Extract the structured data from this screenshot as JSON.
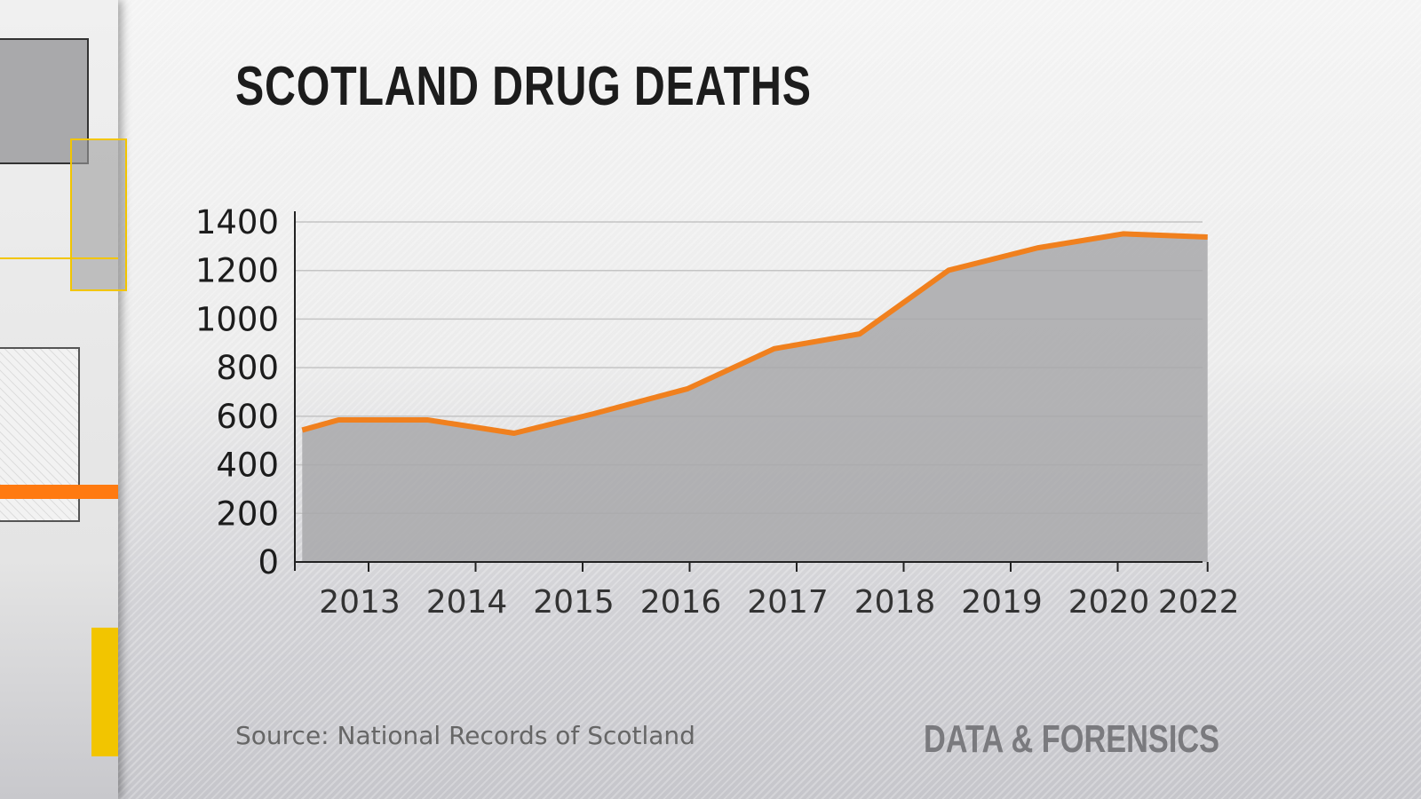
{
  "title": "SCOTLAND DRUG DEATHS",
  "source": "Source: National Records of Scotland",
  "brand": "DATA & FORENSICS",
  "colors": {
    "line": "#f0801e",
    "area": "#a8a8aa",
    "yellow": "#f2c500",
    "orange": "#ff7a10"
  },
  "chart_data": {
    "type": "area",
    "title": "SCOTLAND DRUG DEATHS",
    "xlabel": "",
    "ylabel": "",
    "ylim": [
      0,
      1400
    ],
    "yticks": [
      0,
      200,
      400,
      600,
      800,
      1000,
      1200,
      1400
    ],
    "xticks": [
      {
        "x": 2013,
        "label": "2013"
      },
      {
        "x": 2014,
        "label": "2014"
      },
      {
        "x": 2015,
        "label": "2015"
      },
      {
        "x": 2016,
        "label": "2016"
      },
      {
        "x": 2017,
        "label": "2017"
      },
      {
        "x": 2018,
        "label": "2018"
      },
      {
        "x": 2019,
        "label": "2019"
      },
      {
        "x": 2020,
        "label": "2020"
      },
      {
        "x": 2020.84,
        "label": "2022"
      }
    ],
    "xlim": [
      2012.38,
      2021.0
    ],
    "grid": true,
    "series": [
      {
        "points": [
          {
            "x": 2012.38,
            "y": 543
          },
          {
            "x": 2012.72,
            "y": 585
          },
          {
            "x": 2013.55,
            "y": 585
          },
          {
            "x": 2014.36,
            "y": 530
          },
          {
            "x": 2015.1,
            "y": 610
          },
          {
            "x": 2015.98,
            "y": 713
          },
          {
            "x": 2016.79,
            "y": 878
          },
          {
            "x": 2017.59,
            "y": 939
          },
          {
            "x": 2018.42,
            "y": 1201
          },
          {
            "x": 2019.25,
            "y": 1293
          },
          {
            "x": 2020.05,
            "y": 1351
          },
          {
            "x": 2020.84,
            "y": 1338
          }
        ]
      }
    ]
  }
}
